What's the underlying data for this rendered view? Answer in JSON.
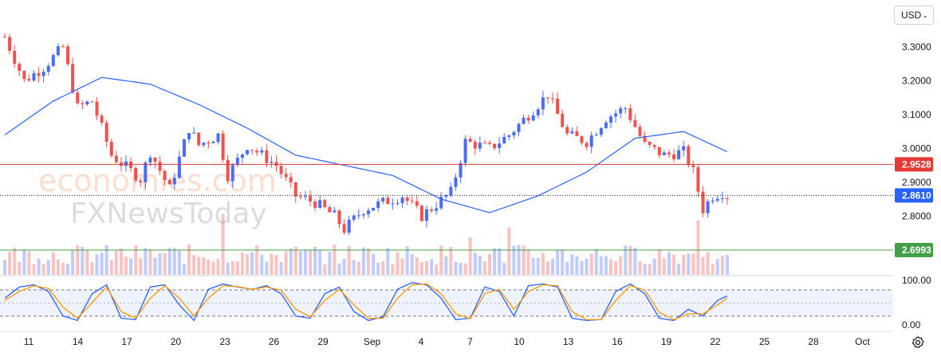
{
  "currency_selector": {
    "label": "USD",
    "chevron": "⌄"
  },
  "settings_icon": "gear-icon",
  "colors": {
    "up": "#4a6cf7",
    "down": "#ef5350",
    "ma": "#2962ff",
    "resistance": "#e53935",
    "support": "#43a047",
    "current": "#2962ff",
    "stoch_k": "#2962ff",
    "stoch_d": "#ff9800"
  },
  "watermark": {
    "line1": "economies.com",
    "line2": "FXNewsToday"
  },
  "chart_data": {
    "type": "candlestick",
    "price_axis": {
      "ticks": [
        3.3,
        3.2,
        3.1,
        3.0,
        2.9,
        2.8
      ],
      "tick_labels": [
        "3.3000",
        "3.2000",
        "3.1000",
        "3.0000",
        "2.9000",
        "2.8000"
      ],
      "ylim": [
        2.66,
        3.4
      ]
    },
    "time_axis": {
      "labels": [
        "11",
        "14",
        "17",
        "20",
        "23",
        "26",
        "29",
        "Sep",
        "4",
        "7",
        "10",
        "13",
        "16",
        "19",
        "22",
        "25",
        "28",
        "Oct"
      ]
    },
    "horizontal_levels": [
      {
        "label": "2.9528",
        "value": 2.9528,
        "kind": "resistance"
      },
      {
        "label": "2.6993",
        "value": 2.6993,
        "kind": "support"
      }
    ],
    "last_price": {
      "label": "2.8610",
      "value": 2.861
    },
    "moving_average": {
      "x": [
        0,
        10,
        20,
        30,
        40,
        50,
        60,
        70,
        80,
        90,
        100,
        110,
        120,
        130,
        140,
        149
      ],
      "values": [
        3.04,
        3.14,
        3.21,
        3.19,
        3.13,
        3.06,
        2.98,
        2.95,
        2.92,
        2.85,
        2.81,
        2.86,
        2.93,
        3.03,
        3.05,
        2.99
      ]
    },
    "price_path": {
      "x": [
        0,
        4,
        8,
        12,
        15,
        18,
        22,
        28,
        30,
        34,
        38,
        40,
        44,
        46,
        50,
        56,
        60,
        64,
        68,
        70,
        74,
        78,
        82,
        86,
        92,
        95,
        100,
        104,
        108,
        112,
        116,
        120,
        124,
        128,
        132,
        136,
        140,
        142,
        144,
        146,
        148,
        149
      ],
      "values": [
        3.33,
        3.2,
        3.24,
        3.3,
        3.12,
        3.14,
        2.98,
        2.91,
        2.99,
        2.88,
        3.06,
        3.01,
        3.04,
        2.92,
        3.01,
        2.95,
        2.86,
        2.84,
        2.8,
        2.76,
        2.82,
        2.84,
        2.86,
        2.8,
        2.87,
        3.02,
        3.0,
        3.04,
        3.1,
        3.16,
        3.04,
        3.02,
        3.09,
        3.12,
        3.01,
        2.98,
        2.99,
        2.93,
        2.82,
        2.86,
        2.87,
        2.861
      ]
    },
    "volume": {
      "spikes": [
        {
          "x": 45,
          "value": 0.9
        },
        {
          "x": 96,
          "value": 0.55
        },
        {
          "x": 104,
          "value": 0.7
        },
        {
          "x": 143,
          "value": 0.8
        }
      ]
    },
    "stochastic": {
      "tick_labels": [
        "100.00",
        "0.00"
      ],
      "levels": [
        80,
        20
      ],
      "x": [
        0,
        3,
        6,
        9,
        12,
        15,
        18,
        21,
        24,
        27,
        30,
        33,
        36,
        39,
        42,
        45,
        48,
        51,
        54,
        57,
        60,
        63,
        66,
        69,
        72,
        75,
        78,
        81,
        84,
        87,
        90,
        93,
        96,
        99,
        102,
        105,
        108,
        111,
        114,
        117,
        120,
        123,
        126,
        129,
        132,
        135,
        138,
        141,
        144,
        147,
        149
      ],
      "k": [
        60,
        85,
        90,
        75,
        20,
        10,
        70,
        90,
        15,
        12,
        85,
        90,
        45,
        10,
        80,
        92,
        85,
        80,
        88,
        70,
        20,
        15,
        70,
        85,
        30,
        10,
        18,
        80,
        95,
        90,
        60,
        12,
        15,
        85,
        75,
        20,
        88,
        92,
        85,
        15,
        10,
        12,
        75,
        92,
        70,
        15,
        10,
        35,
        20,
        55,
        65
      ],
      "d": [
        55,
        75,
        88,
        82,
        40,
        15,
        50,
        85,
        30,
        15,
        60,
        88,
        60,
        20,
        60,
        88,
        86,
        80,
        85,
        78,
        35,
        18,
        55,
        80,
        45,
        15,
        15,
        60,
        90,
        92,
        70,
        25,
        14,
        70,
        80,
        35,
        75,
        90,
        88,
        30,
        12,
        12,
        55,
        88,
        78,
        28,
        12,
        25,
        25,
        45,
        60
      ]
    }
  }
}
